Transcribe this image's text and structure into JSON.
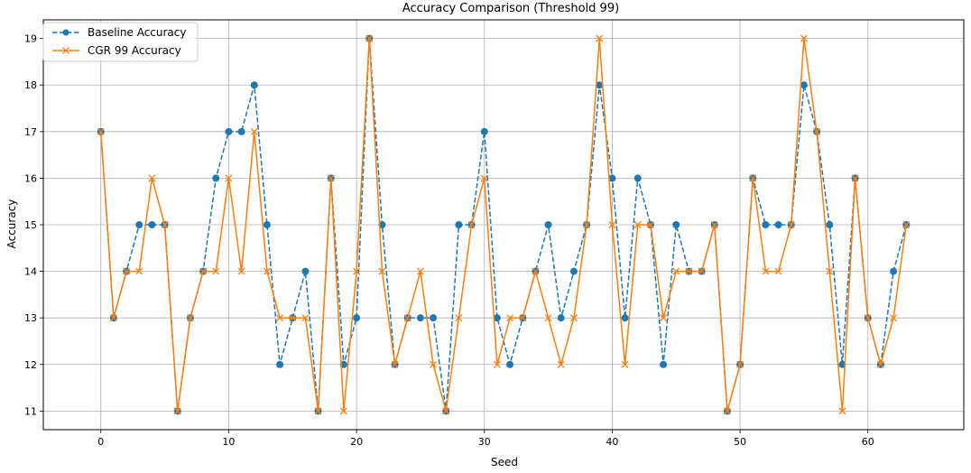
{
  "chart_data": {
    "type": "line",
    "title": "Accuracy Comparison (Threshold 99)",
    "xlabel": "Seed",
    "ylabel": "Accuracy",
    "xlim": [
      -4.5,
      67.5
    ],
    "ylim": [
      10.6,
      19.4
    ],
    "xticks": [
      0,
      10,
      20,
      30,
      40,
      50,
      60
    ],
    "yticks": [
      11,
      12,
      13,
      14,
      15,
      16,
      17,
      18,
      19
    ],
    "grid": true,
    "legend_position": "top-left",
    "x": [
      0,
      1,
      2,
      3,
      4,
      5,
      6,
      7,
      8,
      9,
      10,
      11,
      12,
      13,
      14,
      15,
      16,
      17,
      18,
      19,
      20,
      21,
      22,
      23,
      24,
      25,
      26,
      27,
      28,
      29,
      30,
      31,
      32,
      33,
      34,
      35,
      36,
      37,
      38,
      39,
      40,
      41,
      42,
      43,
      44,
      45,
      46,
      47,
      48,
      49,
      50,
      51,
      52,
      53,
      54,
      55,
      56,
      57,
      58,
      59,
      60,
      61,
      62,
      63
    ],
    "series": [
      {
        "name": "Baseline Accuracy",
        "color": "#1f77b4",
        "line_style": "dashed",
        "marker": "circle",
        "values": [
          17,
          13,
          14,
          15,
          15,
          15,
          11,
          13,
          14,
          16,
          17,
          17,
          18,
          15,
          12,
          13,
          14,
          11,
          16,
          12,
          13,
          19,
          15,
          12,
          13,
          13,
          13,
          11,
          15,
          15,
          17,
          13,
          12,
          13,
          14,
          15,
          13,
          14,
          15,
          18,
          16,
          13,
          16,
          15,
          12,
          15,
          14,
          14,
          15,
          11,
          12,
          16,
          15,
          15,
          15,
          18,
          17,
          15,
          12,
          16,
          13,
          12,
          14,
          15
        ]
      },
      {
        "name": "CGR 99 Accuracy",
        "color": "#ff7f0e",
        "line_style": "solid",
        "marker": "x",
        "values": [
          17,
          13,
          14,
          14,
          16,
          15,
          11,
          13,
          14,
          14,
          16,
          14,
          17,
          14,
          13,
          13,
          13,
          11,
          16,
          11,
          14,
          19,
          14,
          12,
          13,
          14,
          12,
          11,
          13,
          15,
          16,
          12,
          13,
          13,
          14,
          13,
          12,
          13,
          15,
          19,
          15,
          12,
          15,
          15,
          13,
          14,
          14,
          14,
          15,
          11,
          12,
          16,
          14,
          14,
          15,
          19,
          17,
          14,
          11,
          16,
          13,
          12,
          13,
          15
        ]
      }
    ]
  }
}
